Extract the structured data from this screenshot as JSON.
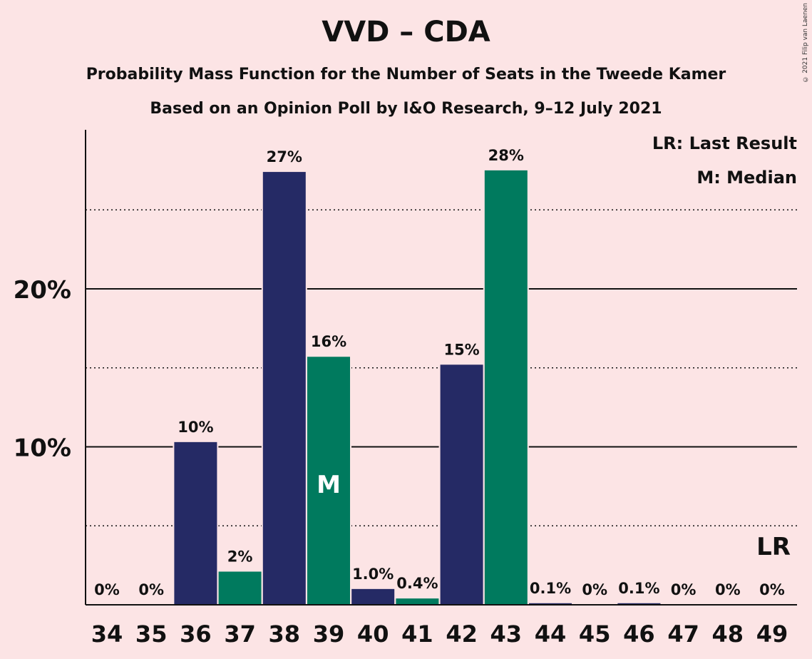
{
  "chart_data": {
    "type": "bar",
    "title": "VVD – CDA",
    "subtitle": "Probability Mass Function for the Number of Seats in the Tweede Kamer",
    "subtitle2": "Based on an Opinion Poll by I&O Research, 9–12 July 2021",
    "copyright": "© 2021 Filip van Laenen",
    "categories": [
      "34",
      "35",
      "36",
      "37",
      "38",
      "39",
      "40",
      "41",
      "42",
      "43",
      "44",
      "45",
      "46",
      "47",
      "48",
      "49"
    ],
    "values": [
      0,
      0,
      10.3,
      2.1,
      27.4,
      15.7,
      1.0,
      0.4,
      15.2,
      27.5,
      0.1,
      0,
      0.1,
      0,
      0,
      0
    ],
    "data_labels": [
      "0%",
      "0%",
      "10%",
      "2%",
      "27%",
      "16%",
      "1.0%",
      "0.4%",
      "15%",
      "28%",
      "0.1%",
      "0%",
      "0.1%",
      "0%",
      "0%",
      "0%"
    ],
    "bar_colors": [
      "#252A65",
      "#007A5E",
      "#252A65",
      "#007A5E",
      "#252A65",
      "#007A5E",
      "#252A65",
      "#007A5E",
      "#252A65",
      "#007A5E",
      "#252A65",
      "#007A5E",
      "#252A65",
      "#007A5E",
      "#252A65",
      "#007A5E"
    ],
    "yticks": [
      10,
      20
    ],
    "ytick_labels": [
      "10%",
      "20%"
    ],
    "minor_grid": [
      5,
      15,
      25
    ],
    "ylim": [
      0,
      30
    ],
    "median_index": 5,
    "median_label": "M",
    "last_result_index": 15,
    "last_result_label": "LR",
    "legend": [
      "LR: Last Result",
      "M: Median"
    ],
    "legend_position": "top-right",
    "colors": {
      "background": "#FCE4E5",
      "vvd": "#252A65",
      "cda": "#007A5E"
    }
  }
}
